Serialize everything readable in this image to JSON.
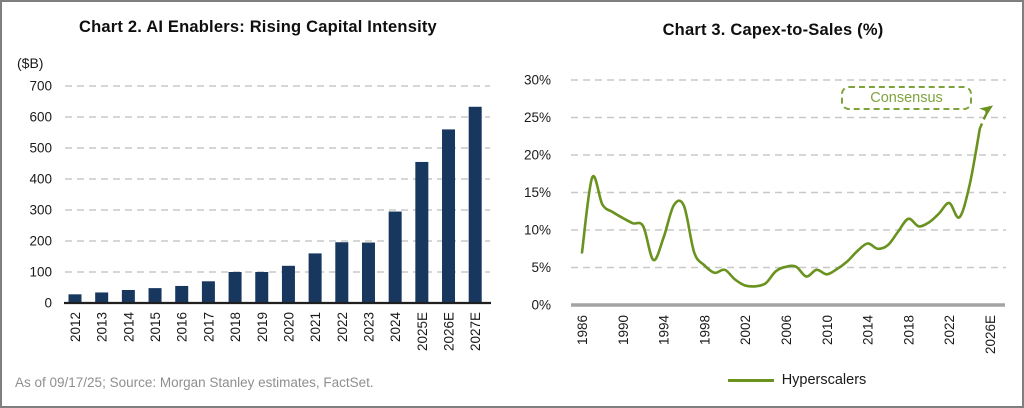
{
  "footer": {
    "text": "As of 09/17/25; Source: Morgan Stanley estimates, FactSet."
  },
  "colors": {
    "bar_navy": "#17375e",
    "line_green": "#69921f",
    "consensus_green": "#7ea33c",
    "gridline_gray": "#c8c8c8",
    "baseline_gray": "#a3a3a3",
    "footer_gray": "#8f8f8f"
  },
  "chart_data": [
    {
      "type": "bar",
      "title": "Chart 2. AI Enablers: Rising Capital Intensity",
      "ylabel": "($B)",
      "xlabel": "",
      "categories": [
        "2012",
        "2013",
        "2014",
        "2015",
        "2016",
        "2017",
        "2018",
        "2019",
        "2020",
        "2021",
        "2022",
        "2023",
        "2024",
        "2025E",
        "2026E",
        "2027E"
      ],
      "values": [
        28,
        34,
        42,
        48,
        55,
        70,
        100,
        100,
        120,
        160,
        196,
        195,
        295,
        455,
        560,
        633
      ],
      "ylim": [
        0,
        700
      ],
      "yticks": [
        0,
        100,
        200,
        300,
        400,
        500,
        600,
        700
      ],
      "bar_color": "#17375e",
      "grid": "dashed-horizontal",
      "x_labels_rotated": true
    },
    {
      "type": "line",
      "title": "Chart 3. Capex-to-Sales (%)",
      "xlabel": "",
      "ylabel": "",
      "ylim": [
        0,
        30
      ],
      "yticks": [
        "0%",
        "5%",
        "10%",
        "15%",
        "20%",
        "25%",
        "30%"
      ],
      "xticks": [
        "1986",
        "1990",
        "1994",
        "1998",
        "2002",
        "2006",
        "2010",
        "2014",
        "2018",
        "2022",
        "2026E"
      ],
      "grid": "dashed-horizontal",
      "legend_position": "bottom",
      "x_labels_rotated": true,
      "series": [
        {
          "name": "Hyperscalers",
          "color": "#69921f",
          "x": [
            1986,
            1987,
            1988,
            1989,
            1990,
            1991,
            1992,
            1993,
            1994,
            1995,
            1996,
            1997,
            1998,
            1999,
            2000,
            2001,
            2002,
            2003,
            2004,
            2005,
            2006,
            2007,
            2008,
            2009,
            2010,
            2011,
            2012,
            2013,
            2014,
            2015,
            2016,
            2017,
            2018,
            2019,
            2020,
            2021,
            2022,
            2023,
            2024,
            2025
          ],
          "values": [
            7.0,
            17.0,
            13.4,
            12.4,
            11.6,
            10.9,
            10.5,
            6.0,
            9.0,
            13.3,
            13.2,
            7.0,
            5.3,
            4.3,
            4.7,
            3.4,
            2.6,
            2.5,
            2.9,
            4.5,
            5.1,
            5.1,
            3.8,
            4.7,
            4.1,
            4.8,
            5.8,
            7.2,
            8.2,
            7.5,
            8.0,
            9.8,
            11.5,
            10.5,
            11.0,
            12.2,
            13.6,
            11.7,
            16.0,
            23.5
          ]
        }
      ],
      "consensus": {
        "label": "Consensus",
        "style": "dashed-arrow",
        "x": [
          2025,
          2026.2
        ],
        "values": [
          23.5,
          26.6
        ]
      }
    }
  ]
}
